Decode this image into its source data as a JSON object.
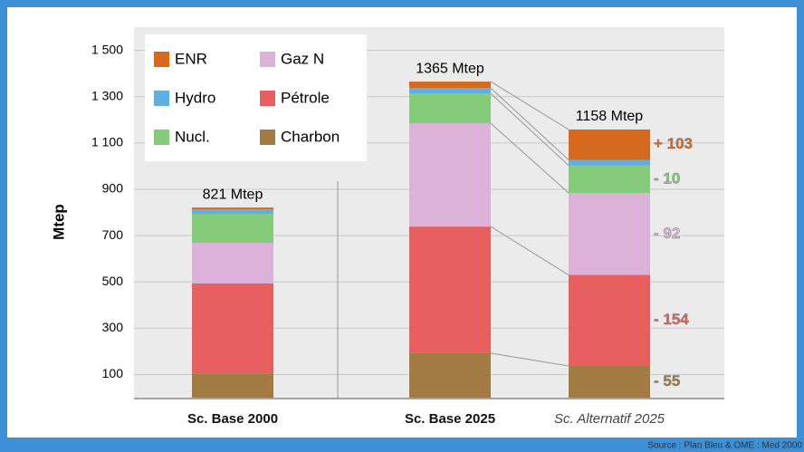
{
  "chart_data": {
    "type": "stacked-bar",
    "y_label": "Mtep",
    "categories": [
      "Sc. Base 2000",
      "Sc. Base 2025",
      "Sc. Alternatif 2025"
    ],
    "series": [
      {
        "name": "Charbon",
        "color": "#a27b43",
        "values": [
          105,
          192,
          137
        ]
      },
      {
        "name": "Pétrole",
        "color": "#e75f5f",
        "values": [
          388,
          547,
          393
        ]
      },
      {
        "name": "Gaz N",
        "color": "#dcb2d9",
        "values": [
          176,
          446,
          354
        ]
      },
      {
        "name": "Nucl.",
        "color": "#84cb7a",
        "values": [
          125,
          129,
          119
        ]
      },
      {
        "name": "Hydro",
        "color": "#5fb0e2",
        "values": [
          19,
          23,
          24
        ]
      },
      {
        "name": "ENR",
        "color": "#d7691e",
        "values": [
          8,
          28,
          131
        ]
      }
    ],
    "total_labels": [
      "821 Mtep",
      "1365 Mtep",
      "1158 Mtep"
    ],
    "annotations": [
      "- 55",
      "- 154",
      "- 92",
      "- 10",
      null,
      "+ 103"
    ],
    "ylim": [
      0,
      1600
    ],
    "yticks": [
      100,
      300,
      500,
      700,
      900,
      {
        "value": 1100,
        "label": "1 100"
      },
      {
        "value": 1300,
        "label": "1 300"
      },
      {
        "value": 1500,
        "label": "1 500"
      }
    ],
    "grid": true,
    "source": "Source : Plan Bleu & OME : Med 2000"
  }
}
